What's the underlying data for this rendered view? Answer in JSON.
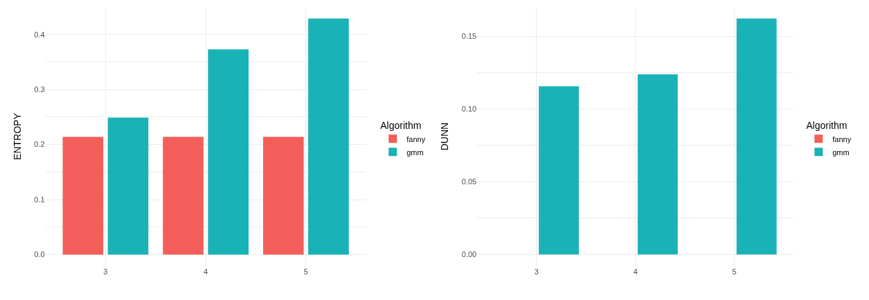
{
  "chart_data": [
    {
      "type": "bar",
      "ylabel": "ENTROPY",
      "legend_title": "Algorithm",
      "categories": [
        "3",
        "4",
        "5"
      ],
      "series": [
        {
          "name": "fanny",
          "color": "#f35e5a",
          "values": [
            0.214,
            0.214,
            0.214
          ]
        },
        {
          "name": "gmm",
          "color": "#19b2b7",
          "values": [
            0.249,
            0.373,
            0.429
          ]
        }
      ],
      "ylim": [
        -0.021,
        0.45
      ],
      "yticks": [
        {
          "value": 0.0,
          "label": "0.0"
        },
        {
          "value": 0.05,
          "label": null
        },
        {
          "value": 0.1,
          "label": "0.1"
        },
        {
          "value": 0.15,
          "label": null
        },
        {
          "value": 0.2,
          "label": "0.2"
        },
        {
          "value": 0.25,
          "label": null
        },
        {
          "value": 0.3,
          "label": "0.3"
        },
        {
          "value": 0.35,
          "label": null
        },
        {
          "value": 0.4,
          "label": "0.4"
        }
      ],
      "grid": true,
      "legend": "right"
    },
    {
      "type": "bar",
      "ylabel": "DUNN",
      "legend_title": "Algorithm",
      "categories": [
        "3",
        "4",
        "5"
      ],
      "series": [
        {
          "name": "fanny",
          "color": "#f35e5a",
          "values": [
            0,
            0,
            0
          ]
        },
        {
          "name": "gmm",
          "color": "#19b2b7",
          "values": [
            0.1155,
            0.1237,
            0.162
          ]
        }
      ],
      "ylim": [
        -0.008,
        0.17
      ],
      "yticks": [
        {
          "value": 0.0,
          "label": "0.00"
        },
        {
          "value": 0.025,
          "label": null
        },
        {
          "value": 0.05,
          "label": "0.05"
        },
        {
          "value": 0.075,
          "label": null
        },
        {
          "value": 0.1,
          "label": "0.10"
        },
        {
          "value": 0.125,
          "label": null
        },
        {
          "value": 0.15,
          "label": "0.15"
        }
      ],
      "grid": true,
      "legend": "right"
    }
  ]
}
